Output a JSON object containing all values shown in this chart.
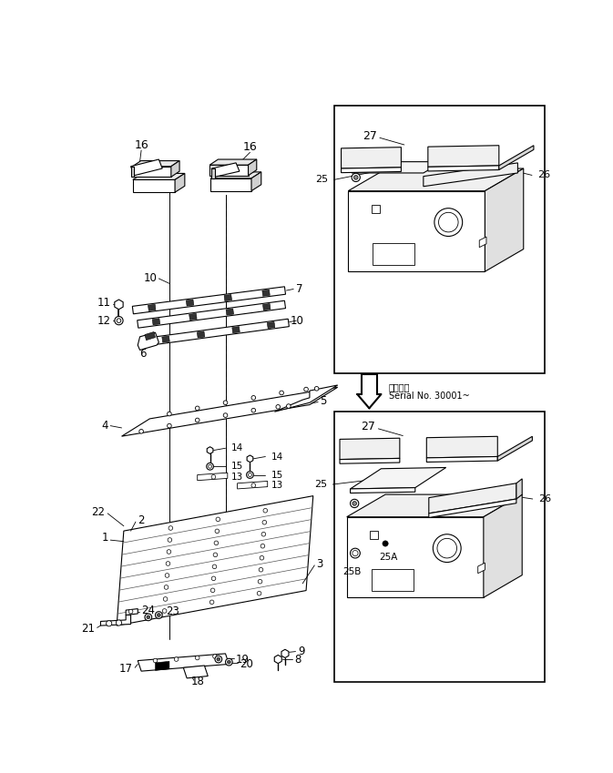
{
  "bg_color": "#ffffff",
  "line_color": "#000000",
  "fig_width": 6.73,
  "fig_height": 8.49,
  "arrow_text1": "適用号機",
  "arrow_text2": "Serial No. 30001~"
}
